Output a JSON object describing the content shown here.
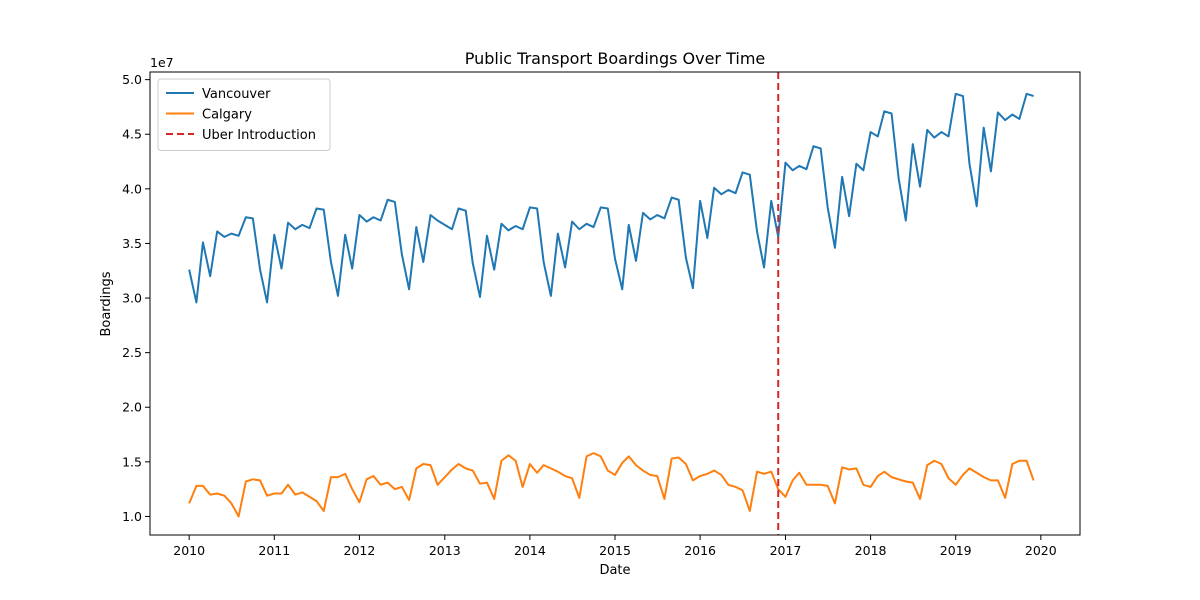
{
  "chart_data": {
    "type": "line",
    "title": "Public Transport Boardings Over Time",
    "xlabel": "Date",
    "ylabel": "Boardings",
    "y_offset_label": "1e7",
    "x_range": [
      "2009-07-17",
      "2020-06-17"
    ],
    "ylim": [
      8300000,
      50700000
    ],
    "x_ticks": [
      {
        "date": "2010-01-01",
        "label": "2010"
      },
      {
        "date": "2011-01-01",
        "label": "2011"
      },
      {
        "date": "2012-01-01",
        "label": "2012"
      },
      {
        "date": "2013-01-01",
        "label": "2013"
      },
      {
        "date": "2014-01-01",
        "label": "2014"
      },
      {
        "date": "2015-01-01",
        "label": "2015"
      },
      {
        "date": "2016-01-01",
        "label": "2016"
      },
      {
        "date": "2017-01-01",
        "label": "2017"
      },
      {
        "date": "2018-01-01",
        "label": "2018"
      },
      {
        "date": "2019-01-01",
        "label": "2019"
      },
      {
        "date": "2020-01-01",
        "label": "2020"
      }
    ],
    "y_ticks": [
      {
        "value": 10000000,
        "label": "1.0"
      },
      {
        "value": 15000000,
        "label": "1.5"
      },
      {
        "value": 20000000,
        "label": "2.0"
      },
      {
        "value": 25000000,
        "label": "2.5"
      },
      {
        "value": 30000000,
        "label": "3.0"
      },
      {
        "value": 35000000,
        "label": "3.5"
      },
      {
        "value": 40000000,
        "label": "4.0"
      },
      {
        "value": 45000000,
        "label": "4.5"
      },
      {
        "value": 50000000,
        "label": "5.0"
      }
    ],
    "grid": false,
    "legend_position": "top-left",
    "start_month": "2010-01",
    "frequency": "monthly",
    "series": [
      {
        "name": "Vancouver",
        "color": "#1f77b4",
        "values": [
          32600000,
          29600000,
          35100000,
          32000000,
          36100000,
          35600000,
          35900000,
          35700000,
          37400000,
          37300000,
          32600000,
          29600000,
          35800000,
          32700000,
          36900000,
          36300000,
          36700000,
          36400000,
          38200000,
          38100000,
          33300000,
          30200000,
          35800000,
          32700000,
          37600000,
          37000000,
          37400000,
          37100000,
          39000000,
          38800000,
          34000000,
          30800000,
          36500000,
          33300000,
          37600000,
          37100000,
          36700000,
          36300000,
          38200000,
          38000000,
          33200000,
          30100000,
          35700000,
          32600000,
          36800000,
          36200000,
          36600000,
          36300000,
          38300000,
          38200000,
          33300000,
          30200000,
          35900000,
          32800000,
          37000000,
          36300000,
          36800000,
          36500000,
          38300000,
          38200000,
          33600000,
          30800000,
          36700000,
          33400000,
          37800000,
          37200000,
          37600000,
          37300000,
          39200000,
          39000000,
          33700000,
          30900000,
          38900000,
          35500000,
          40100000,
          39500000,
          39900000,
          39600000,
          41500000,
          41300000,
          36100000,
          32800000,
          38900000,
          35600000,
          42400000,
          41700000,
          42100000,
          41800000,
          43900000,
          43700000,
          38300000,
          34600000,
          41100000,
          37500000,
          42300000,
          41700000,
          45200000,
          44800000,
          47100000,
          46900000,
          41000000,
          37100000,
          44100000,
          40200000,
          45400000,
          44700000,
          45200000,
          44800000,
          48700000,
          48500000,
          42300000,
          38400000,
          45600000,
          41600000,
          47000000,
          46300000,
          46800000,
          46400000,
          48700000,
          48500000
        ]
      },
      {
        "name": "Calgary",
        "color": "#ff7f0e",
        "values": [
          11200000,
          12800000,
          12800000,
          12000000,
          12100000,
          11900000,
          11200000,
          10000000,
          13200000,
          13400000,
          13300000,
          11900000,
          12100000,
          12100000,
          12900000,
          12000000,
          12200000,
          11800000,
          11400000,
          10500000,
          13600000,
          13600000,
          13900000,
          12500000,
          11300000,
          13400000,
          13700000,
          12900000,
          13100000,
          12500000,
          12700000,
          11500000,
          14400000,
          14800000,
          14700000,
          12900000,
          13600000,
          14300000,
          14800000,
          14400000,
          14200000,
          13000000,
          13100000,
          11600000,
          15100000,
          15600000,
          15100000,
          12700000,
          14800000,
          14000000,
          14700000,
          14400000,
          14100000,
          13700000,
          13500000,
          11700000,
          15500000,
          15800000,
          15500000,
          14200000,
          13800000,
          14900000,
          15500000,
          14700000,
          14200000,
          13800000,
          13700000,
          11600000,
          15300000,
          15400000,
          14800000,
          13300000,
          13700000,
          13900000,
          14200000,
          13800000,
          12900000,
          12700000,
          12400000,
          10500000,
          14100000,
          13900000,
          14100000,
          12500000,
          11800000,
          13300000,
          14000000,
          12900000,
          12900000,
          12900000,
          12800000,
          11200000,
          14500000,
          14300000,
          14400000,
          12900000,
          12700000,
          13700000,
          14100000,
          13600000,
          13400000,
          13200000,
          13100000,
          11600000,
          14700000,
          15100000,
          14800000,
          13500000,
          12900000,
          13800000,
          14400000,
          14000000,
          13600000,
          13300000,
          13300000,
          11700000,
          14800000,
          15100000,
          15100000,
          13300000
        ]
      }
    ],
    "annotations": [
      {
        "type": "vline",
        "date": "2016-12-01",
        "color": "#d62728",
        "linestyle": "dashed",
        "label": "Uber Introduction"
      }
    ]
  }
}
